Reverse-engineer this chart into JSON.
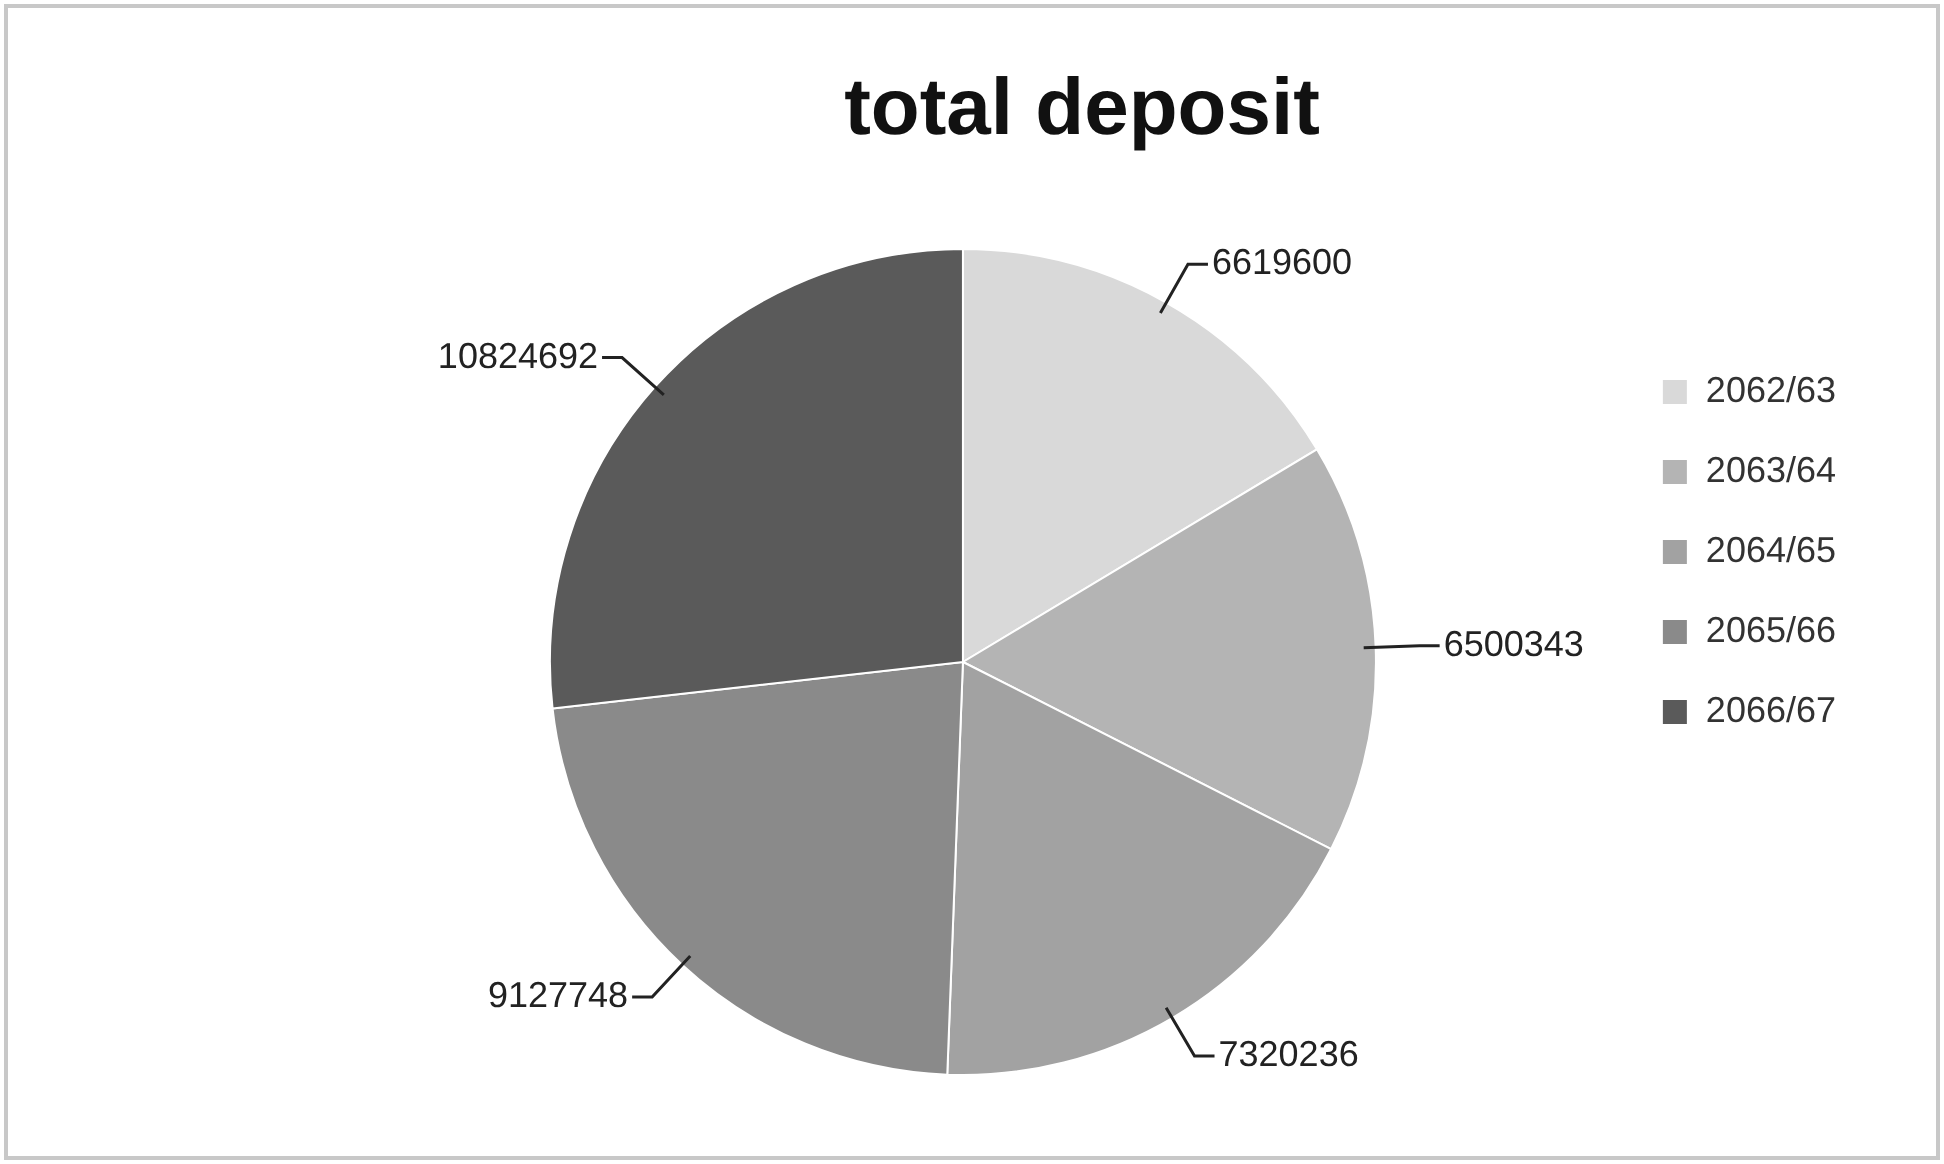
{
  "chart_data": {
    "type": "pie",
    "title": "total deposit",
    "categories": [
      "2062/63",
      "2063/64",
      "2064/65",
      "2065/66",
      "2066/67"
    ],
    "values": [
      6619600,
      6500343,
      7320236,
      9127748,
      10824692
    ],
    "colors": [
      "#d9d9d9",
      "#b4b4b4",
      "#a2a2a2",
      "#8a8a8a",
      "#5a5a5a"
    ],
    "data_labels": true,
    "legend": "right"
  }
}
